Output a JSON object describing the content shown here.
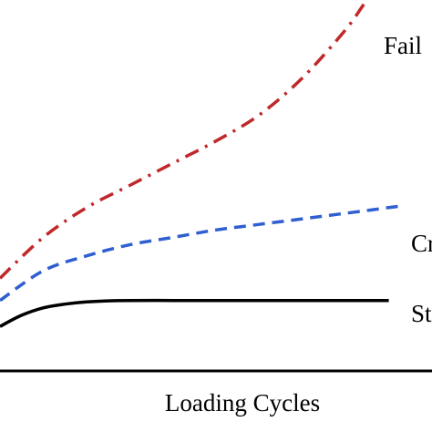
{
  "chart_data": {
    "type": "line",
    "title": "",
    "xlabel": "Loading Cycles",
    "ylabel": "",
    "grid": false,
    "legend": "none",
    "x_range": [
      0,
      100
    ],
    "y_range": [
      0,
      100
    ],
    "series": [
      {
        "name": "Fail",
        "style": "dash-dot",
        "color": "#c0282a",
        "x": [
          0,
          10,
          20,
          30,
          40,
          50,
          60,
          70,
          80,
          85,
          90
        ],
        "y": [
          25,
          36,
          44,
          50,
          56,
          62,
          69,
          79,
          92,
          100,
          106
        ]
      },
      {
        "name": "Cr",
        "style": "dashed",
        "color": "#2f5fd0",
        "x": [
          0,
          10,
          20,
          30,
          40,
          50,
          60,
          70,
          80,
          93
        ],
        "y": [
          19,
          27,
          31,
          34,
          36,
          38,
          39.5,
          41,
          42.5,
          44.5
        ]
      },
      {
        "name": "St",
        "style": "solid",
        "color": "#000000",
        "x": [
          0,
          5,
          10,
          15,
          20,
          25,
          30,
          40,
          50,
          60,
          70,
          80,
          90
        ],
        "y": [
          12,
          15,
          17,
          18,
          18.6,
          18.9,
          19,
          19,
          19,
          19,
          19,
          19,
          19
        ]
      }
    ]
  }
}
